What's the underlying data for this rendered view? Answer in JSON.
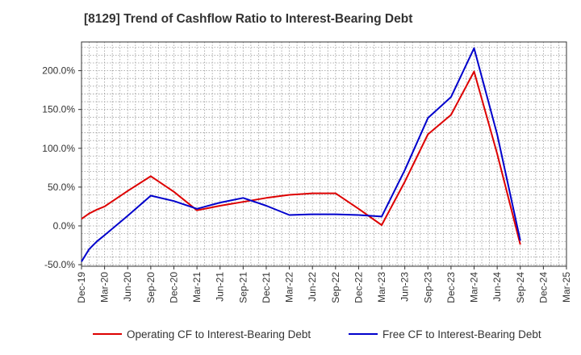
{
  "chart_data": {
    "type": "line",
    "title": "[8129]  Trend of Cashflow Ratio to Interest-Bearing Debt",
    "x_ticks": [
      "Dec-19",
      "Mar-20",
      "Jun-20",
      "Sep-20",
      "Dec-20",
      "Mar-21",
      "Jun-21",
      "Sep-21",
      "Dec-21",
      "Mar-22",
      "Jun-22",
      "Sep-22",
      "Dec-22",
      "Mar-23",
      "Jun-23",
      "Sep-23",
      "Dec-23",
      "Mar-24",
      "Jun-24",
      "Sep-24",
      "Dec-24",
      "Mar-25"
    ],
    "y_ticks": [
      "-50.0%",
      "0.0%",
      "50.0%",
      "100.0%",
      "150.0%",
      "200.0%"
    ],
    "y_tick_values": [
      -50,
      0,
      50,
      100,
      150,
      200
    ],
    "ylim": [
      -52,
      237
    ],
    "grid": true,
    "legend_position": "bottom",
    "series": [
      {
        "name": "Operating CF to Interest-Bearing Debt",
        "color": "#dd0000",
        "x": [
          "Dec-19",
          "Jan-20",
          "Feb-20",
          "Mar-20",
          "Jun-20",
          "Sep-20",
          "Dec-20",
          "Mar-21",
          "Jun-21",
          "Sep-21",
          "Dec-21",
          "Mar-22",
          "Jun-22",
          "Sep-22",
          "Dec-22",
          "Mar-23",
          "Jun-23",
          "Sep-23",
          "Dec-23",
          "Mar-24",
          "Jun-24",
          "Sep-24"
        ],
        "values": [
          9,
          16,
          21,
          25,
          45,
          64,
          44,
          20,
          26,
          31,
          36,
          40,
          42,
          42,
          22,
          1,
          57,
          118,
          143,
          199,
          93,
          -24
        ]
      },
      {
        "name": "Free CF to Interest-Bearing Debt",
        "color": "#0000cc",
        "x": [
          "Dec-19",
          "Jan-20",
          "Feb-20",
          "Mar-20",
          "Jun-20",
          "Sep-20",
          "Dec-20",
          "Mar-21",
          "Jun-21",
          "Sep-21",
          "Dec-21",
          "Mar-22",
          "Jun-22",
          "Sep-22",
          "Dec-22",
          "Mar-23",
          "Jun-23",
          "Sep-23",
          "Dec-23",
          "Mar-24",
          "Jun-24",
          "Sep-24"
        ],
        "values": [
          -46,
          -30,
          -20,
          -12,
          13,
          39,
          32,
          22,
          30,
          36,
          26,
          14,
          15,
          15,
          14,
          12,
          72,
          139,
          166,
          229,
          118,
          -19
        ]
      }
    ]
  }
}
